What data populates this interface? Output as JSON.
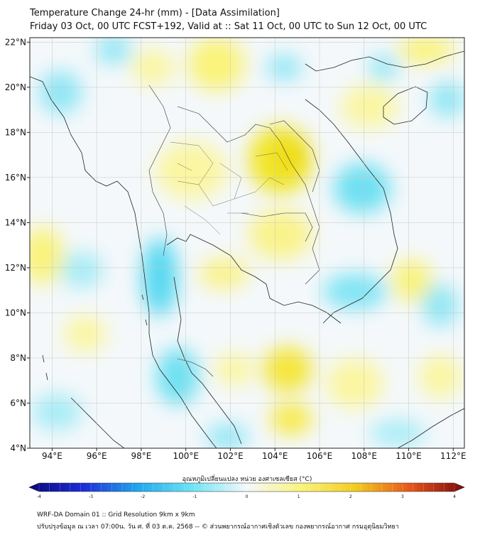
{
  "title": {
    "line1": "Temperature Change 24-hr (mm) - [Data Assimilation]",
    "line2": "Friday 03 Oct, 00 UTC FCST+192, Valid at :: Sat 11 Oct, 00 UTC to Sun 12 Oct, 00 UTC"
  },
  "map": {
    "lon_range": [
      93,
      112.5
    ],
    "lat_range": [
      4,
      22.2
    ],
    "lon_ticks": [
      {
        "value": 94,
        "label": "94°E"
      },
      {
        "value": 96,
        "label": "96°E"
      },
      {
        "value": 98,
        "label": "98°E"
      },
      {
        "value": 100,
        "label": "100°E"
      },
      {
        "value": 102,
        "label": "102°E"
      },
      {
        "value": 104,
        "label": "104°E"
      },
      {
        "value": 106,
        "label": "106°E"
      },
      {
        "value": 108,
        "label": "108°E"
      },
      {
        "value": 110,
        "label": "110°E"
      },
      {
        "value": 112,
        "label": "112°E"
      }
    ],
    "lat_ticks": [
      {
        "value": 4,
        "label": "4°N"
      },
      {
        "value": 6,
        "label": "6°N"
      },
      {
        "value": 8,
        "label": "8°N"
      },
      {
        "value": 10,
        "label": "10°N"
      },
      {
        "value": 12,
        "label": "12°N"
      },
      {
        "value": 14,
        "label": "14°N"
      },
      {
        "value": 16,
        "label": "16°N"
      },
      {
        "value": 18,
        "label": "18°N"
      },
      {
        "value": 20,
        "label": "20°N"
      },
      {
        "value": 22,
        "label": "22°N"
      }
    ],
    "grid": true
  },
  "colorbar": {
    "title": "อุณหภูมิเปลี่ยนแปลง หน่วย องศาเซลเซียส (°C)",
    "min": -4,
    "max": 4,
    "ticks": [
      {
        "value": -4,
        "label": "-4"
      },
      {
        "value": -3,
        "label": "-3"
      },
      {
        "value": -2,
        "label": "-2"
      },
      {
        "value": -1,
        "label": "-1"
      },
      {
        "value": 0,
        "label": "0"
      },
      {
        "value": 1,
        "label": "1"
      },
      {
        "value": 2,
        "label": "2"
      },
      {
        "value": 3,
        "label": "3"
      },
      {
        "value": 4,
        "label": "4"
      }
    ],
    "stops": [
      {
        "value": -4,
        "color": "#08087a"
      },
      {
        "value": -3,
        "color": "#1e2cd8"
      },
      {
        "value": -2,
        "color": "#1fa8ee"
      },
      {
        "value": -1,
        "color": "#6ee4f4"
      },
      {
        "value": 0,
        "color": "#f4f8fb"
      },
      {
        "value": 1,
        "color": "#faf47a"
      },
      {
        "value": 2,
        "color": "#f2cc1c"
      },
      {
        "value": 3,
        "color": "#e8561a"
      },
      {
        "value": 4,
        "color": "#7a0a0a"
      }
    ]
  },
  "footer": {
    "line1": "WRF-DA Domain 01 :: Grid Resolution 9km x 9km",
    "line2": "ปรับปรุงข้อมูล ณ เวลา 07:00น. วัน ศ. ที่ 03 ต.ค. 2568 -- © ส่วนพยากรณ์อากาศเชิงตัวเลข กองพยากรณ์อากาศ กรมอุตุนิยมวิทยา"
  }
}
